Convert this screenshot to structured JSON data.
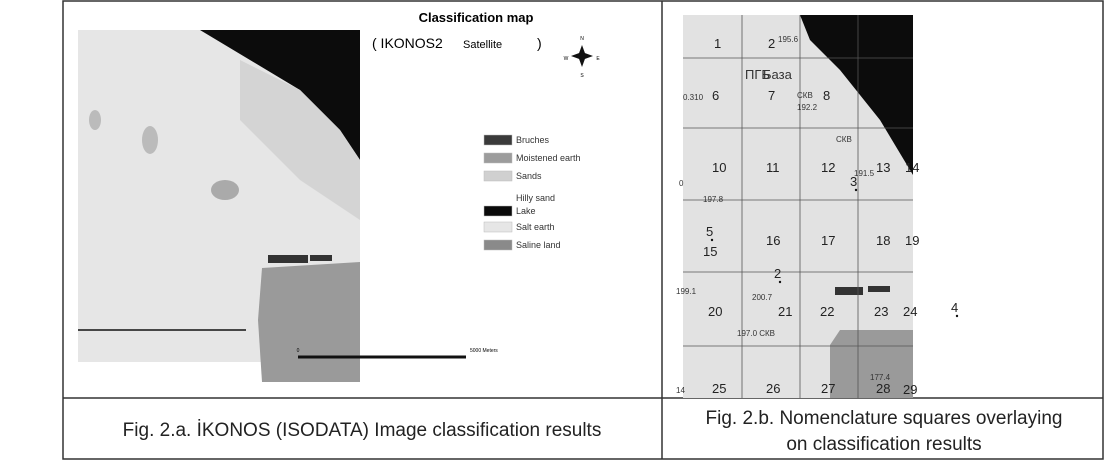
{
  "left_panel": {
    "title": "Classification map",
    "subtitle_open": "( IKONOS2",
    "subtitle_small": "Satellite",
    "subtitle_close": ")",
    "compass": [
      "N",
      "S",
      "W",
      "E"
    ],
    "legend": [
      "Bruches",
      "Moistened earth",
      "Sands",
      "Hilly sand",
      "Lake",
      "Salt earth",
      "Saline land"
    ],
    "scale": [
      "0",
      "5000 Meters"
    ]
  },
  "right_panel": {
    "squares": [
      "1",
      "2",
      "6",
      "7",
      "8",
      "10",
      "11",
      "12",
      "13",
      "14",
      "15",
      "16",
      "17",
      "18",
      "19",
      "20",
      "21",
      "22",
      "23",
      "24",
      "25",
      "26",
      "27",
      "28",
      "29"
    ],
    "points": [
      "2",
      "3",
      "4",
      "5"
    ],
    "annotations": [
      "195.6",
      "ПГБ",
      "База",
      "СКВ",
      "192.2",
      "0.310",
      "СКВ",
      "191.5",
      "197.8",
      "199.1",
      "200.7",
      "197.0 СКВ",
      "177.4",
      "0",
      "14"
    ]
  },
  "captions": {
    "left": "Fig. 2.a. İKONOS  (ISODATA) Image classification results",
    "right_line1": "Fig. 2.b. Nomenclature squares overlaying",
    "right_line2": "on classification results"
  }
}
